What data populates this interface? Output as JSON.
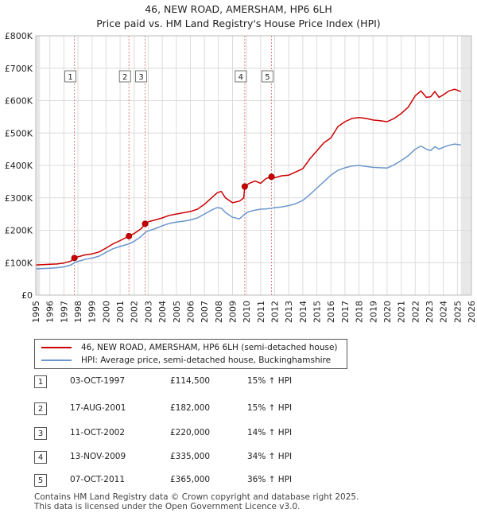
{
  "title_line1": "46, NEW ROAD, AMERSHAM, HP6 6LH",
  "title_line2": "Price paid vs. HM Land Registry's House Price Index (HPI)",
  "chart_data": {
    "type": "line",
    "title": "46, NEW ROAD, AMERSHAM, HP6 6LH — Price paid vs. HM Land Registry's House Price Index (HPI)",
    "xlabel": "",
    "ylabel": "",
    "xlim": [
      1995,
      2026
    ],
    "ylim": [
      0,
      800000
    ],
    "x_ticks": [
      1995,
      1996,
      1997,
      1998,
      1999,
      2000,
      2001,
      2002,
      2003,
      2004,
      2005,
      2006,
      2007,
      2008,
      2009,
      2010,
      2011,
      2012,
      2013,
      2014,
      2015,
      2016,
      2017,
      2018,
      2019,
      2020,
      2021,
      2022,
      2023,
      2024,
      2025,
      2026
    ],
    "y_ticks": [
      {
        "value": 0,
        "label": "£0"
      },
      {
        "value": 100000,
        "label": "£100K"
      },
      {
        "value": 200000,
        "label": "£200K"
      },
      {
        "value": 300000,
        "label": "£300K"
      },
      {
        "value": 400000,
        "label": "£400K"
      },
      {
        "value": 500000,
        "label": "£500K"
      },
      {
        "value": 600000,
        "label": "£600K"
      },
      {
        "value": 700000,
        "label": "£700K"
      },
      {
        "value": 800000,
        "label": "£800K"
      }
    ],
    "grid": true,
    "shaded_regions": [
      {
        "from": 1995,
        "to": 1995.3
      },
      {
        "from": 2025.25,
        "to": 2026
      }
    ],
    "series": [
      {
        "name": "46, NEW ROAD, AMERSHAM, HP6 6LH (semi-detached house)",
        "color": "#cc0000",
        "points": [
          [
            1995,
            93000
          ],
          [
            1995.5,
            94000
          ],
          [
            1996,
            95000
          ],
          [
            1996.5,
            96000
          ],
          [
            1997,
            99000
          ],
          [
            1997.5,
            105000
          ],
          [
            1997.75,
            114500
          ],
          [
            1998,
            118000
          ],
          [
            1998.5,
            124000
          ],
          [
            1999,
            127000
          ],
          [
            1999.5,
            133000
          ],
          [
            2000,
            145000
          ],
          [
            2000.5,
            158000
          ],
          [
            2001,
            168000
          ],
          [
            2001.63,
            182000
          ],
          [
            2002,
            190000
          ],
          [
            2002.5,
            205000
          ],
          [
            2002.78,
            220000
          ],
          [
            2003,
            226000
          ],
          [
            2003.5,
            232000
          ],
          [
            2004,
            238000
          ],
          [
            2004.5,
            246000
          ],
          [
            2005,
            250000
          ],
          [
            2005.5,
            254000
          ],
          [
            2006,
            258000
          ],
          [
            2006.5,
            265000
          ],
          [
            2007,
            280000
          ],
          [
            2007.5,
            300000
          ],
          [
            2007.9,
            315000
          ],
          [
            2008.2,
            320000
          ],
          [
            2008.5,
            300000
          ],
          [
            2009,
            285000
          ],
          [
            2009.5,
            290000
          ],
          [
            2009.8,
            300000
          ],
          [
            2009.87,
            335000
          ],
          [
            2010.2,
            345000
          ],
          [
            2010.6,
            352000
          ],
          [
            2011,
            345000
          ],
          [
            2011.4,
            360000
          ],
          [
            2011.77,
            365000
          ],
          [
            2012,
            362000
          ],
          [
            2012.5,
            368000
          ],
          [
            2013,
            370000
          ],
          [
            2013.5,
            380000
          ],
          [
            2014,
            390000
          ],
          [
            2014.5,
            420000
          ],
          [
            2015,
            445000
          ],
          [
            2015.5,
            470000
          ],
          [
            2016,
            485000
          ],
          [
            2016.5,
            520000
          ],
          [
            2017,
            535000
          ],
          [
            2017.5,
            545000
          ],
          [
            2018,
            548000
          ],
          [
            2018.5,
            545000
          ],
          [
            2019,
            540000
          ],
          [
            2019.5,
            538000
          ],
          [
            2020,
            535000
          ],
          [
            2020.5,
            545000
          ],
          [
            2021,
            560000
          ],
          [
            2021.5,
            580000
          ],
          [
            2022,
            615000
          ],
          [
            2022.4,
            630000
          ],
          [
            2022.8,
            610000
          ],
          [
            2023.1,
            612000
          ],
          [
            2023.4,
            628000
          ],
          [
            2023.7,
            610000
          ],
          [
            2024,
            618000
          ],
          [
            2024.4,
            630000
          ],
          [
            2024.8,
            635000
          ],
          [
            2025.25,
            628000
          ]
        ]
      },
      {
        "name": "HPI: Average price, semi-detached house, Buckinghamshire",
        "color": "#6b96cc",
        "points": [
          [
            1995,
            81000
          ],
          [
            1995.5,
            82000
          ],
          [
            1996,
            83000
          ],
          [
            1996.5,
            84500
          ],
          [
            1997,
            87000
          ],
          [
            1997.5,
            93000
          ],
          [
            1997.75,
            99500
          ],
          [
            1998,
            104000
          ],
          [
            1998.5,
            110000
          ],
          [
            1999,
            114000
          ],
          [
            1999.5,
            120000
          ],
          [
            2000,
            132000
          ],
          [
            2000.5,
            143000
          ],
          [
            2001,
            150000
          ],
          [
            2001.63,
            158000
          ],
          [
            2002,
            166000
          ],
          [
            2002.5,
            181000
          ],
          [
            2002.78,
            193000
          ],
          [
            2003,
            198000
          ],
          [
            2003.5,
            205000
          ],
          [
            2004,
            214000
          ],
          [
            2004.5,
            221000
          ],
          [
            2005,
            225000
          ],
          [
            2005.5,
            228000
          ],
          [
            2006,
            232000
          ],
          [
            2006.5,
            238000
          ],
          [
            2007,
            250000
          ],
          [
            2007.5,
            262000
          ],
          [
            2007.9,
            270000
          ],
          [
            2008.2,
            268000
          ],
          [
            2008.5,
            255000
          ],
          [
            2009,
            240000
          ],
          [
            2009.5,
            235000
          ],
          [
            2009.87,
            250000
          ],
          [
            2010.2,
            258000
          ],
          [
            2010.6,
            262000
          ],
          [
            2011,
            265000
          ],
          [
            2011.4,
            266000
          ],
          [
            2011.77,
            268000
          ],
          [
            2012,
            270000
          ],
          [
            2012.5,
            272000
          ],
          [
            2013,
            276000
          ],
          [
            2013.5,
            282000
          ],
          [
            2014,
            292000
          ],
          [
            2014.5,
            310000
          ],
          [
            2015,
            330000
          ],
          [
            2015.5,
            350000
          ],
          [
            2016,
            370000
          ],
          [
            2016.5,
            385000
          ],
          [
            2017,
            393000
          ],
          [
            2017.5,
            398000
          ],
          [
            2018,
            400000
          ],
          [
            2018.5,
            397000
          ],
          [
            2019,
            394000
          ],
          [
            2019.5,
            393000
          ],
          [
            2020,
            392000
          ],
          [
            2020.5,
            402000
          ],
          [
            2021,
            415000
          ],
          [
            2021.5,
            430000
          ],
          [
            2022,
            450000
          ],
          [
            2022.4,
            460000
          ],
          [
            2022.8,
            450000
          ],
          [
            2023.1,
            446000
          ],
          [
            2023.4,
            458000
          ],
          [
            2023.7,
            450000
          ],
          [
            2024,
            456000
          ],
          [
            2024.4,
            462000
          ],
          [
            2024.8,
            466000
          ],
          [
            2025.25,
            463000
          ]
        ]
      }
    ],
    "sales": [
      {
        "n": "1",
        "x": 1997.75,
        "price": 114500
      },
      {
        "n": "2",
        "x": 2001.63,
        "price": 182000
      },
      {
        "n": "3",
        "x": 2002.78,
        "price": 220000
      },
      {
        "n": "4",
        "x": 2009.87,
        "price": 335000
      },
      {
        "n": "5",
        "x": 2011.77,
        "price": 365000
      }
    ]
  },
  "legend": {
    "property": "46, NEW ROAD, AMERSHAM, HP6 6LH (semi-detached house)",
    "hpi": "HPI: Average price, semi-detached house, Buckinghamshire"
  },
  "sales_table": [
    {
      "n": "1",
      "date": "03-OCT-1997",
      "price": "£114,500",
      "hpi": "15% ↑ HPI"
    },
    {
      "n": "2",
      "date": "17-AUG-2001",
      "price": "£182,000",
      "hpi": "15% ↑ HPI"
    },
    {
      "n": "3",
      "date": "11-OCT-2002",
      "price": "£220,000",
      "hpi": "14% ↑ HPI"
    },
    {
      "n": "4",
      "date": "13-NOV-2009",
      "price": "£335,000",
      "hpi": "34% ↑ HPI"
    },
    {
      "n": "5",
      "date": "07-OCT-2011",
      "price": "£365,000",
      "hpi": "36% ↑ HPI"
    }
  ],
  "footer": {
    "line1": "Contains HM Land Registry data © Crown copyright and database right 2025.",
    "line2": "This data is licensed under the Open Government Licence v3.0."
  }
}
